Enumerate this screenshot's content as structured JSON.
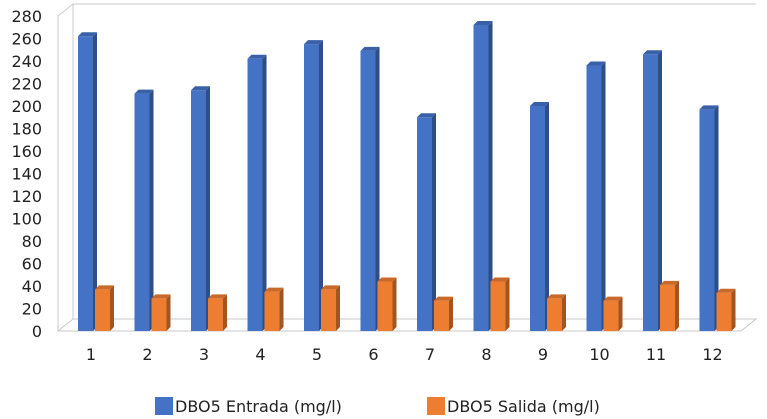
{
  "chart_data": {
    "type": "bar",
    "categories": [
      "1",
      "2",
      "3",
      "4",
      "5",
      "6",
      "7",
      "8",
      "9",
      "10",
      "11",
      "12"
    ],
    "series": [
      {
        "name": "DBO5 Entrada (mg/l)",
        "values": [
          262,
          211,
          214,
          242,
          255,
          249,
          190,
          272,
          200,
          236,
          246,
          197
        ],
        "color": "#4472C4"
      },
      {
        "name": "DBO5 Salida (mg/l)",
        "values": [
          37,
          29,
          29,
          35,
          37,
          44,
          27,
          44,
          29,
          27,
          41,
          34
        ],
        "color": "#ED7D31"
      }
    ],
    "ylim": [
      0,
      280
    ],
    "yticks": [
      "0",
      "20",
      "40",
      "60",
      "80",
      "100",
      "120",
      "140",
      "160",
      "180",
      "200",
      "220",
      "240",
      "260",
      "280"
    ],
    "grid": false,
    "legend_position": "bottom",
    "title": "",
    "xlabel": "",
    "ylabel": ""
  }
}
